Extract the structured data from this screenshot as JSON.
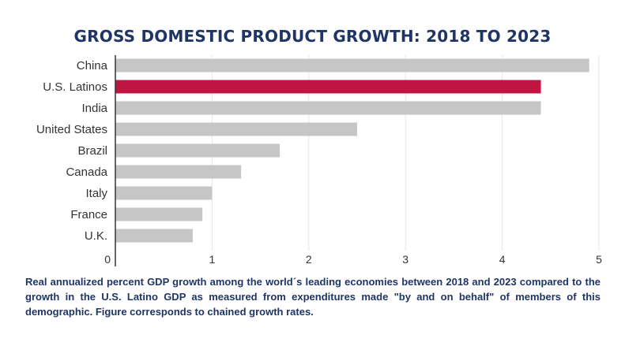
{
  "chart_data": {
    "type": "bar",
    "orientation": "horizontal",
    "title": "GROSS DOMESTIC PRODUCT GROWTH: 2018 TO 2023",
    "categories": [
      "China",
      "U.S. Latinos",
      "India",
      "United States",
      "Brazil",
      "Canada",
      "Italy",
      "France",
      "U.K."
    ],
    "values": [
      4.9,
      4.4,
      4.4,
      2.5,
      1.7,
      1.3,
      1.0,
      0.9,
      0.8
    ],
    "highlight_category": "U.S. Latinos",
    "colors": {
      "default_bar": "#c6c6c6",
      "highlight_bar": "#bf1540",
      "gridline": "#e6e6e6",
      "axis": "#333333"
    },
    "xlim": [
      0,
      5
    ],
    "xticks": [
      "0",
      "1",
      "2",
      "3",
      "4",
      "5"
    ],
    "xlabel": "",
    "ylabel": "",
    "grid": true
  },
  "caption": "Real annualized percent GDP growth among the world´s leading economies between 2018 and 2023 compared to the growth in the U.S. Latino GDP as measured from expenditures made \"by and on behalf\" of members of this demographic. Figure corresponds to chained growth rates."
}
